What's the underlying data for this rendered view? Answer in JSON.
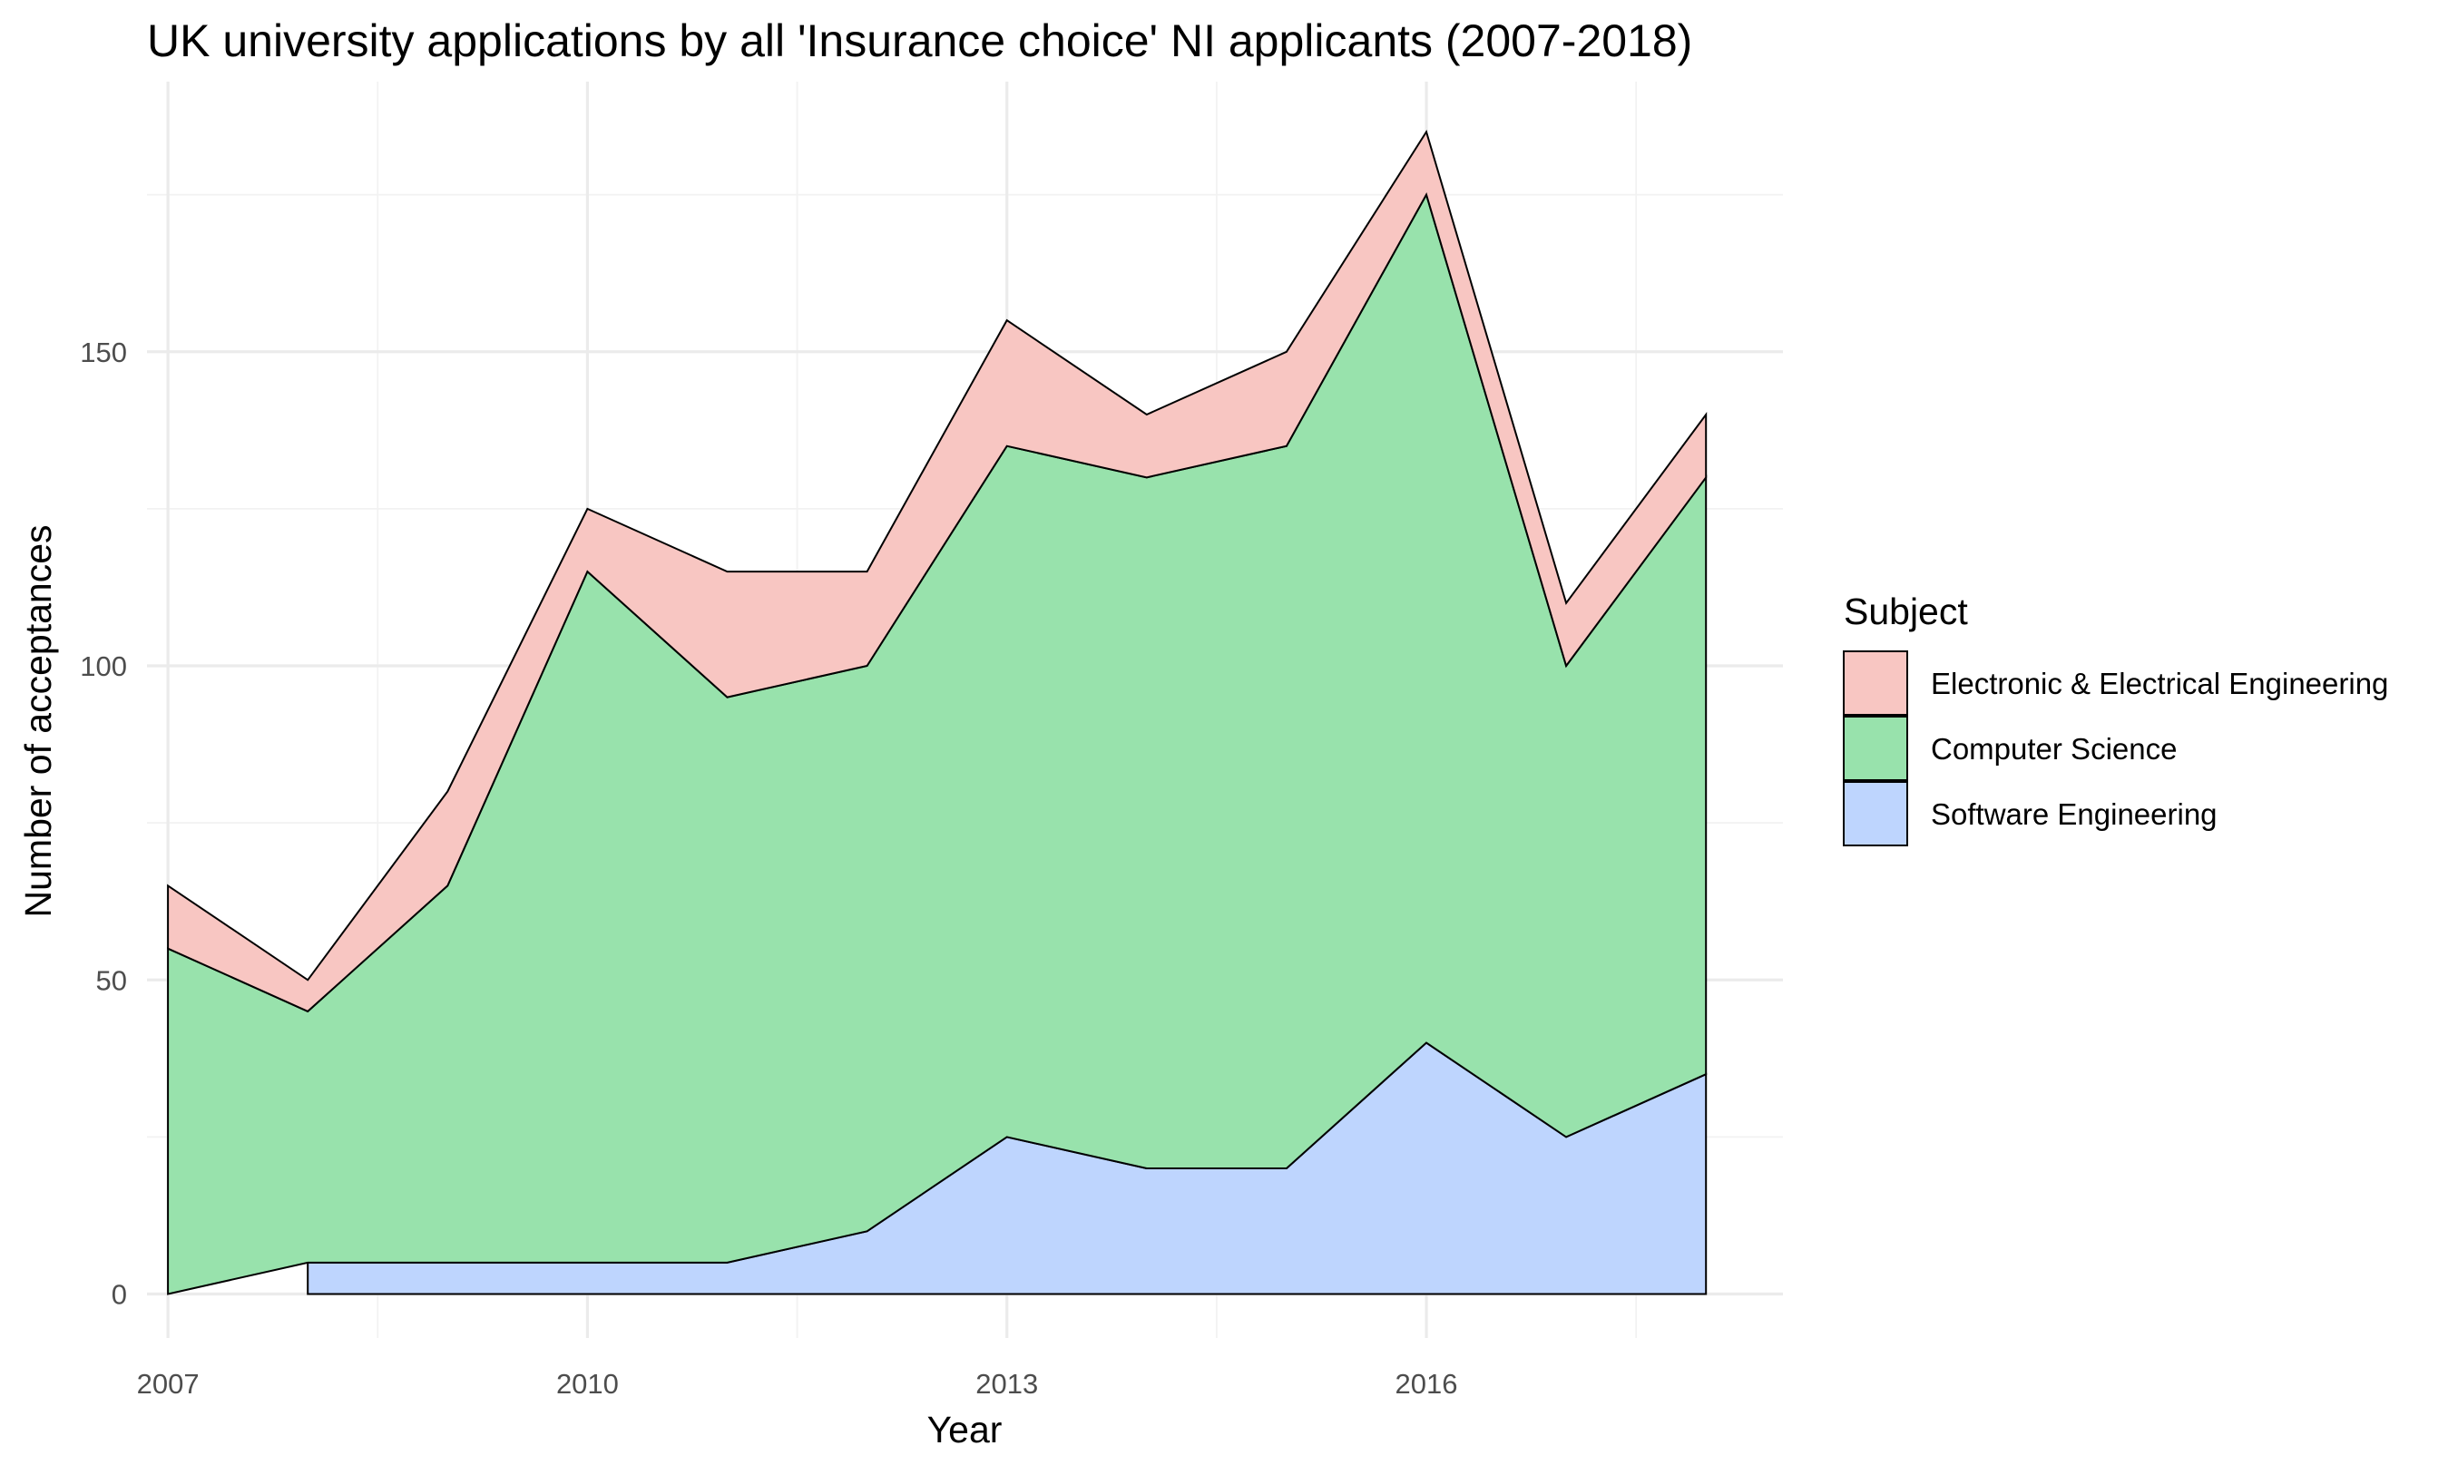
{
  "chart_data": {
    "type": "area",
    "stacked": true,
    "title": "UK university applications by all 'Insurance choice' NI applicants (2007-2018)",
    "xlabel": "Year",
    "ylabel": "Number of acceptances",
    "x": [
      2007,
      2008,
      2009,
      2010,
      2011,
      2012,
      2013,
      2014,
      2015,
      2016,
      2017,
      2018
    ],
    "xlim": [
      2006.85,
      2018.55
    ],
    "ylim": [
      -7,
      193
    ],
    "x_ticks": [
      2007,
      2010,
      2013,
      2016
    ],
    "x_tick_labels": [
      "2007",
      "2010",
      "2013",
      "2016"
    ],
    "y_ticks": [
      0,
      50,
      100,
      150
    ],
    "y_tick_labels": [
      "0",
      "50",
      "100",
      "150"
    ],
    "grid": true,
    "legend_title": "Subject",
    "legend_position": "right",
    "stack_order": [
      "Software Engineering",
      "Computer Science",
      "Electronic & Electrical Engineering"
    ],
    "series": [
      {
        "name": "Electronic & Electrical Engineering",
        "color": "#f8c6c2",
        "values": [
          10,
          5,
          15,
          10,
          20,
          15,
          20,
          10,
          15,
          10,
          10,
          10
        ]
      },
      {
        "name": "Computer Science",
        "color": "#98e2ac",
        "values": [
          55,
          40,
          60,
          110,
          90,
          90,
          110,
          110,
          115,
          135,
          75,
          95
        ]
      },
      {
        "name": "Software Engineering",
        "color": "#bed5fe",
        "values": [
          null,
          5,
          5,
          5,
          5,
          10,
          25,
          20,
          20,
          40,
          25,
          35
        ]
      }
    ]
  }
}
